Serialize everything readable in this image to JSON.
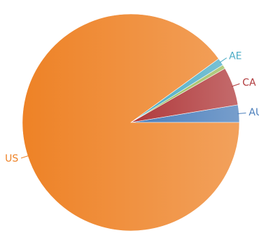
{
  "chart_data": {
    "type": "pie",
    "categories": [
      "AU",
      "CA",
      null,
      "AE",
      "US"
    ],
    "values": [
      2.6,
      5.7,
      0.6,
      1.1,
      90.0
    ],
    "colors": [
      "#4a7ebb",
      "#b0393b",
      "#9bbb59",
      "#4bacc6",
      "#ee8226"
    ]
  }
}
